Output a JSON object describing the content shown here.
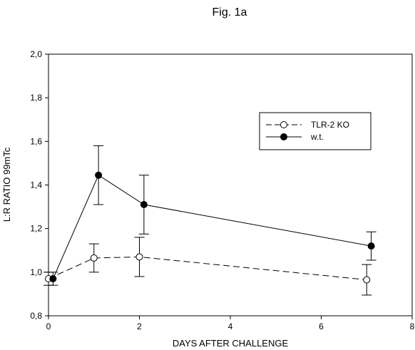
{
  "figure": {
    "title": "Fig. 1a"
  },
  "chart_data": {
    "type": "line",
    "title": "Fig. 1a",
    "xlabel": "DAYS AFTER CHALLENGE",
    "ylabel": "L:R RATIO 99mTc",
    "xlim": [
      0,
      8
    ],
    "ylim": [
      0.8,
      2.0
    ],
    "xticks": [
      0,
      2,
      4,
      6,
      8
    ],
    "xtick_labels": [
      "0",
      "2",
      "4",
      "6",
      "8"
    ],
    "yticks": [
      0.8,
      1.0,
      1.2,
      1.4,
      1.6,
      1.8,
      2.0
    ],
    "ytick_labels": [
      "0,8",
      "1,0",
      "1,2",
      "1,4",
      "1,6",
      "1,8",
      "2,0"
    ],
    "grid": false,
    "legend_position": "top-right",
    "series": [
      {
        "name": "TLR-2 KO",
        "line_style": "dashed",
        "marker": "open-circle",
        "color": "#000000",
        "x": [
          0,
          1,
          2,
          7
        ],
        "y": [
          0.97,
          1.065,
          1.07,
          0.965
        ],
        "error": [
          0.03,
          0.065,
          0.09,
          0.07
        ]
      },
      {
        "name": "w.t.",
        "line_style": "solid",
        "marker": "filled-circle",
        "color": "#000000",
        "x": [
          0.1,
          1.1,
          2.1,
          7.1
        ],
        "y": [
          0.97,
          1.445,
          1.31,
          1.12
        ],
        "error": [
          0.03,
          0.135,
          0.135,
          0.065
        ]
      }
    ]
  }
}
